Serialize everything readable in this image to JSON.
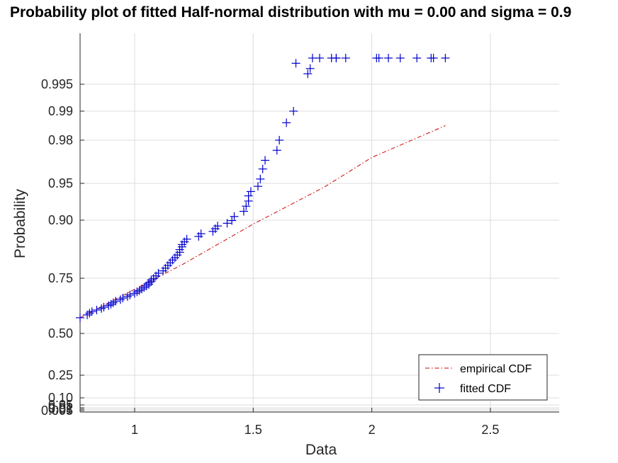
{
  "chart_data": {
    "type": "scatter",
    "title": "Probability plot of fitted Half-normal distribution with mu = 0.00 and sigma = 0.9",
    "xlabel": "Data",
    "ylabel": "Probability",
    "xlim": [
      0.77,
      2.79
    ],
    "y_scale": "half-normal probability",
    "grid": true,
    "legend_position": "bottom-right",
    "x_ticks": [
      {
        "value": 1,
        "label": "1"
      },
      {
        "value": 1.5,
        "label": "1.5"
      },
      {
        "value": 2,
        "label": "2"
      },
      {
        "value": 2.5,
        "label": "2.5"
      }
    ],
    "y_ticks": [
      {
        "value": 0.005,
        "label": "0.005"
      },
      {
        "value": 0.01,
        "label": "0.01"
      },
      {
        "value": 0.02,
        "label": "0.02"
      },
      {
        "value": 0.05,
        "label": "0.05"
      },
      {
        "value": 0.1,
        "label": "0.10"
      },
      {
        "value": 0.25,
        "label": "0.25"
      },
      {
        "value": 0.5,
        "label": "0.50"
      },
      {
        "value": 0.75,
        "label": "0.75"
      },
      {
        "value": 0.9,
        "label": "0.90"
      },
      {
        "value": 0.95,
        "label": "0.95"
      },
      {
        "value": 0.98,
        "label": "0.98"
      },
      {
        "value": 0.99,
        "label": "0.99"
      },
      {
        "value": 0.995,
        "label": "0.995"
      }
    ],
    "series": [
      {
        "name": "empirical CDF",
        "style": "dash-dot line",
        "color": "#cc0000",
        "x": [
          0.77,
          1.0,
          1.2,
          1.5,
          1.8,
          2.0,
          2.31
        ],
        "y": [
          0.571,
          0.7,
          0.785,
          0.89,
          0.945,
          0.968,
          0.985
        ]
      },
      {
        "name": "fitted CDF",
        "style": "plus markers",
        "color": "#0000cc",
        "x": [
          0.77,
          0.8,
          0.81,
          0.82,
          0.84,
          0.86,
          0.87,
          0.89,
          0.9,
          0.91,
          0.92,
          0.94,
          0.95,
          0.97,
          0.98,
          1.0,
          1.01,
          1.02,
          1.03,
          1.04,
          1.05,
          1.06,
          1.06,
          1.07,
          1.07,
          1.08,
          1.09,
          1.1,
          1.12,
          1.13,
          1.14,
          1.15,
          1.16,
          1.17,
          1.18,
          1.19,
          1.19,
          1.2,
          1.2,
          1.21,
          1.22,
          1.27,
          1.28,
          1.33,
          1.34,
          1.35,
          1.39,
          1.41,
          1.42,
          1.46,
          1.47,
          1.48,
          1.48,
          1.49,
          1.52,
          1.53,
          1.54,
          1.55,
          1.6,
          1.61,
          1.64,
          1.67,
          1.68,
          1.73,
          1.74,
          1.75,
          1.78,
          1.83,
          1.85,
          1.85,
          1.89,
          2.02,
          2.03,
          2.07,
          2.12,
          2.19,
          2.25,
          2.26,
          2.31
        ],
        "y": [
          0.571,
          0.584,
          0.592,
          0.599,
          0.606,
          0.613,
          0.619,
          0.626,
          0.632,
          0.639,
          0.646,
          0.653,
          0.66,
          0.667,
          0.674,
          0.681,
          0.688,
          0.694,
          0.701,
          0.708,
          0.715,
          0.722,
          0.729,
          0.735,
          0.742,
          0.749,
          0.756,
          0.763,
          0.769,
          0.776,
          0.783,
          0.79,
          0.797,
          0.803,
          0.81,
          0.817,
          0.824,
          0.831,
          0.837,
          0.844,
          0.851,
          0.858,
          0.865,
          0.871,
          0.878,
          0.885,
          0.892,
          0.899,
          0.905,
          0.912,
          0.919,
          0.926,
          0.933,
          0.939,
          0.946,
          0.953,
          0.96,
          0.966,
          0.973,
          0.98,
          0.986,
          0.99,
          0.999,
          0.997,
          0.998,
          1.0,
          1.0,
          1.0,
          1.0,
          1.0,
          1.0,
          1.0,
          1.0,
          1.0,
          1.0,
          1.0,
          1.0,
          1.0,
          1.0
        ]
      }
    ]
  }
}
